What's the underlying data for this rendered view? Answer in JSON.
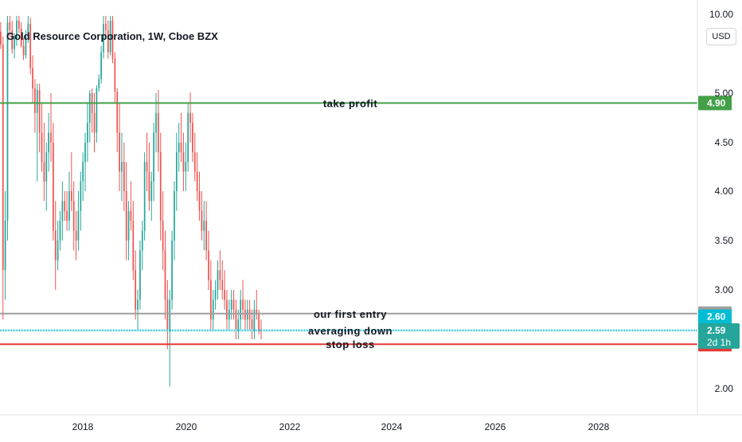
{
  "header": {
    "title": "Gold Resource Corporation, 1W, Cboe BZX",
    "currency_button": "USD"
  },
  "colors": {
    "up": "#26a69a",
    "down": "#ef5350",
    "take_profit": "#43a047",
    "stop_loss": "#e53935",
    "entry": "#9e9e9e",
    "averaging": "#00bcd4",
    "current_price": "#26a69a",
    "price_2_60": "#00bcd4"
  },
  "chart_data": {
    "type": "candlestick",
    "x_ticks": [
      "2018",
      "2020",
      "2022",
      "2024",
      "2026",
      "2028"
    ],
    "y_ticks": [
      "2.00",
      "3.00",
      "3.50",
      "4.00",
      "4.50",
      "5.00",
      "10.00"
    ],
    "ylim": [
      1.9,
      10.2
    ],
    "horizontal_lines": [
      {
        "label": "take profit",
        "price": "4.90",
        "key": "take_profit"
      },
      {
        "label": "our first entry",
        "price": "2.76",
        "key": "entry"
      },
      {
        "label": "averaging down",
        "price": "2.59",
        "key": "averaging"
      },
      {
        "label": "stop loss",
        "price": "2.45",
        "key": "stop_loss"
      }
    ],
    "price_badges": [
      {
        "price": "2.60",
        "key": "price_2_60"
      },
      {
        "price": "2.59",
        "sub": "2d 1h",
        "key": "current_price"
      }
    ],
    "candles": [
      [
        9.2,
        9.8,
        8.0,
        8.9
      ],
      [
        8.9,
        9.5,
        7.8,
        8.1
      ],
      [
        8.1,
        8.6,
        2.7,
        3.2
      ],
      [
        3.2,
        4.0,
        2.9,
        3.7
      ],
      [
        3.7,
        9.9,
        3.5,
        9.5
      ],
      [
        9.5,
        9.9,
        8.6,
        9.0
      ],
      [
        9.0,
        9.6,
        7.5,
        7.8
      ],
      [
        7.8,
        8.8,
        7.2,
        8.5
      ],
      [
        8.5,
        9.9,
        8.0,
        9.6
      ],
      [
        9.6,
        9.9,
        8.8,
        9.1
      ],
      [
        9.1,
        9.5,
        7.9,
        8.0
      ],
      [
        8.0,
        8.5,
        7.1,
        7.4
      ],
      [
        7.4,
        9.0,
        7.2,
        8.6
      ],
      [
        8.6,
        9.9,
        8.2,
        9.4
      ],
      [
        9.4,
        9.8,
        6.2,
        6.6
      ],
      [
        6.6,
        7.4,
        4.9,
        5.3
      ],
      [
        5.3,
        5.9,
        4.6,
        4.8
      ],
      [
        4.8,
        5.6,
        4.1,
        5.2
      ],
      [
        5.2,
        5.6,
        4.4,
        4.6
      ],
      [
        4.6,
        4.9,
        4.2,
        4.3
      ],
      [
        4.3,
        4.7,
        3.9,
        4.1
      ],
      [
        4.1,
        4.5,
        3.8,
        4.4
      ],
      [
        4.4,
        4.8,
        4.2,
        4.6
      ],
      [
        4.6,
        5.0,
        4.3,
        4.5
      ],
      [
        4.5,
        4.7,
        3.5,
        3.6
      ],
      [
        3.6,
        3.9,
        3.0,
        3.3
      ],
      [
        3.3,
        3.7,
        3.2,
        3.5
      ],
      [
        3.5,
        3.8,
        3.4,
        3.7
      ],
      [
        3.7,
        4.1,
        3.5,
        3.9
      ],
      [
        3.9,
        4.0,
        3.7,
        3.8
      ],
      [
        3.8,
        4.0,
        3.6,
        3.7
      ],
      [
        3.7,
        4.2,
        3.6,
        4.0
      ],
      [
        4.0,
        4.4,
        3.8,
        3.9
      ],
      [
        3.9,
        4.1,
        3.4,
        3.6
      ],
      [
        3.6,
        3.8,
        3.3,
        3.5
      ],
      [
        3.5,
        4.0,
        3.4,
        3.8
      ],
      [
        3.8,
        4.2,
        3.6,
        4.1
      ],
      [
        4.1,
        4.4,
        3.9,
        4.3
      ],
      [
        4.3,
        4.6,
        4.0,
        4.5
      ],
      [
        4.5,
        4.9,
        4.3,
        4.7
      ],
      [
        4.7,
        5.2,
        4.5,
        5.0
      ],
      [
        5.0,
        5.3,
        4.6,
        4.8
      ],
      [
        4.8,
        5.0,
        4.4,
        4.6
      ],
      [
        4.6,
        5.5,
        4.5,
        5.3
      ],
      [
        5.3,
        6.2,
        5.1,
        5.9
      ],
      [
        5.9,
        8.0,
        5.6,
        7.6
      ],
      [
        7.6,
        9.9,
        7.2,
        9.4
      ],
      [
        9.4,
        9.9,
        8.5,
        9.0
      ],
      [
        9.0,
        9.6,
        7.2,
        7.6
      ],
      [
        7.6,
        9.9,
        7.4,
        9.6
      ],
      [
        9.6,
        9.9,
        6.9,
        7.2
      ],
      [
        7.2,
        7.6,
        4.9,
        5.1
      ],
      [
        5.1,
        5.3,
        4.4,
        4.6
      ],
      [
        4.6,
        4.9,
        4.0,
        4.2
      ],
      [
        4.2,
        4.6,
        3.9,
        4.3
      ],
      [
        4.3,
        4.5,
        3.8,
        4.0
      ],
      [
        4.0,
        4.3,
        3.3,
        3.5
      ],
      [
        3.5,
        3.9,
        3.3,
        3.8
      ],
      [
        3.8,
        4.1,
        3.6,
        3.7
      ],
      [
        3.7,
        3.9,
        3.1,
        3.2
      ],
      [
        3.2,
        3.4,
        2.7,
        2.8
      ],
      [
        2.8,
        3.0,
        2.6,
        2.9
      ],
      [
        2.9,
        3.5,
        2.8,
        3.4
      ],
      [
        3.4,
        3.7,
        3.2,
        3.6
      ],
      [
        3.6,
        4.4,
        3.5,
        4.3
      ],
      [
        4.3,
        4.6,
        4.0,
        4.2
      ],
      [
        4.2,
        4.5,
        3.8,
        3.9
      ],
      [
        3.9,
        4.2,
        3.7,
        4.1
      ],
      [
        4.1,
        4.7,
        3.9,
        4.6
      ],
      [
        4.6,
        5.0,
        4.4,
        4.8
      ],
      [
        4.8,
        5.2,
        4.2,
        4.4
      ],
      [
        4.4,
        4.6,
        3.5,
        3.7
      ],
      [
        3.7,
        4.0,
        3.2,
        3.4
      ],
      [
        3.4,
        3.6,
        2.7,
        2.9
      ],
      [
        2.9,
        3.1,
        2.4,
        2.6
      ],
      [
        2.6,
        3.0,
        2.02,
        2.9
      ],
      [
        2.9,
        3.6,
        2.8,
        3.5
      ],
      [
        3.5,
        4.1,
        3.3,
        4.0
      ],
      [
        4.0,
        4.6,
        3.8,
        4.4
      ],
      [
        4.4,
        4.7,
        4.2,
        4.5
      ],
      [
        4.5,
        4.8,
        4.3,
        4.4
      ],
      [
        4.4,
        4.6,
        4.0,
        4.2
      ],
      [
        4.2,
        4.5,
        4.0,
        4.3
      ],
      [
        4.3,
        4.9,
        4.2,
        4.8
      ],
      [
        4.8,
        5.05,
        4.5,
        4.7
      ],
      [
        4.7,
        4.8,
        4.3,
        4.4
      ],
      [
        4.4,
        4.6,
        4.1,
        4.2
      ],
      [
        4.2,
        4.4,
        3.9,
        4.0
      ],
      [
        4.0,
        4.2,
        3.7,
        3.8
      ],
      [
        3.8,
        4.0,
        3.5,
        3.6
      ],
      [
        3.6,
        3.9,
        3.4,
        3.7
      ],
      [
        3.7,
        3.9,
        3.3,
        3.4
      ],
      [
        3.4,
        3.6,
        3.0,
        3.1
      ],
      [
        3.1,
        3.3,
        2.6,
        2.7
      ],
      [
        2.7,
        3.0,
        2.6,
        2.9
      ],
      [
        2.9,
        3.1,
        2.8,
        3.0
      ],
      [
        3.0,
        3.3,
        2.9,
        3.2
      ],
      [
        3.2,
        3.4,
        3.0,
        3.1
      ],
      [
        3.1,
        3.3,
        2.9,
        3.0
      ],
      [
        3.0,
        3.2,
        2.8,
        2.9
      ],
      [
        2.9,
        3.0,
        2.6,
        2.7
      ],
      [
        2.7,
        2.9,
        2.6,
        2.8
      ],
      [
        2.8,
        3.0,
        2.7,
        2.9
      ],
      [
        2.9,
        3.0,
        2.7,
        2.8
      ],
      [
        2.8,
        2.9,
        2.5,
        2.6
      ],
      [
        2.6,
        2.8,
        2.5,
        2.7
      ],
      [
        2.7,
        3.0,
        2.6,
        2.9
      ],
      [
        2.9,
        3.1,
        2.7,
        2.8
      ],
      [
        2.8,
        2.9,
        2.6,
        2.7
      ],
      [
        2.7,
        2.9,
        2.6,
        2.8
      ],
      [
        2.8,
        2.9,
        2.6,
        2.7
      ],
      [
        2.7,
        2.8,
        2.5,
        2.6
      ],
      [
        2.6,
        2.9,
        2.5,
        2.8
      ],
      [
        2.8,
        3.0,
        2.7,
        2.75
      ],
      [
        2.75,
        2.8,
        2.55,
        2.6
      ],
      [
        2.6,
        2.7,
        2.5,
        2.59
      ]
    ]
  }
}
